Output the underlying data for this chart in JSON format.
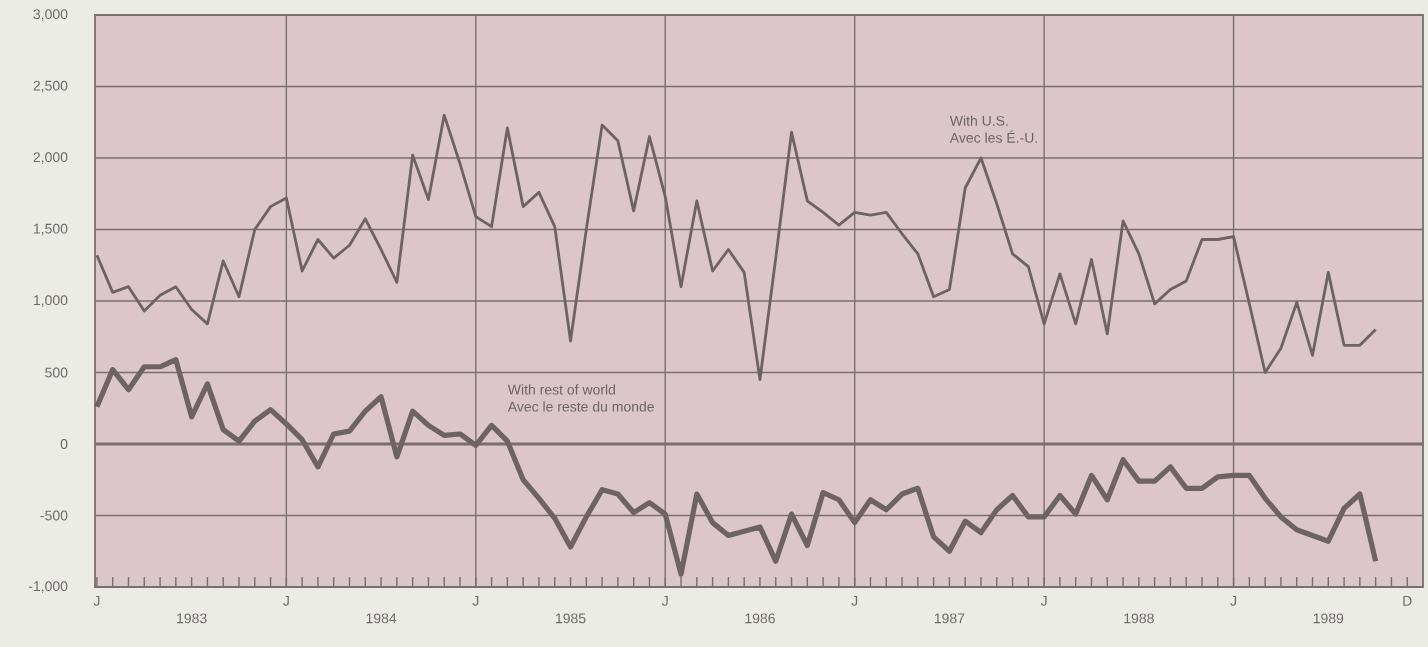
{
  "chart_data": {
    "type": "line",
    "categories": [
      "J",
      null,
      null,
      null,
      null,
      null,
      null,
      null,
      null,
      null,
      null,
      null,
      "J",
      null,
      null,
      null,
      null,
      null,
      null,
      null,
      null,
      null,
      null,
      null,
      "J",
      null,
      null,
      null,
      null,
      null,
      null,
      null,
      null,
      null,
      null,
      null,
      "J",
      null,
      null,
      null,
      null,
      null,
      null,
      null,
      null,
      null,
      null,
      null,
      "J",
      null,
      null,
      null,
      null,
      null,
      null,
      null,
      null,
      null,
      null,
      null,
      "J",
      null,
      null,
      null,
      null,
      null,
      null,
      null,
      null,
      null,
      null,
      null,
      "J",
      null,
      null,
      null,
      null,
      null,
      null,
      null,
      null,
      null,
      null,
      "D"
    ],
    "series": [
      {
        "name": "With U.S.",
        "color": "#6e6363",
        "values": [
          1320,
          1060,
          1100,
          930,
          1040,
          1100,
          940,
          840,
          1280,
          1030,
          1500,
          1660,
          1720,
          1210,
          1430,
          1300,
          1390,
          1575,
          1360,
          1130,
          2020,
          1710,
          2300,
          1960,
          1590,
          1520,
          2210,
          1660,
          1760,
          1520,
          720,
          1500,
          2230,
          2120,
          1630,
          2150,
          1730,
          1100,
          1700,
          1210,
          1360,
          1200,
          450,
          1300,
          2180,
          1700,
          1620,
          1530,
          1620,
          1600,
          1620,
          1470,
          1330,
          1030,
          1080,
          1790,
          2000,
          1680,
          1330,
          1240,
          840,
          1190,
          840,
          1290,
          770,
          1560,
          1330,
          980,
          1080,
          1140,
          1430,
          1430,
          1450,
          980,
          500,
          670,
          990,
          620,
          1200,
          690,
          690,
          800,
          null,
          null
        ]
      },
      {
        "name": "With rest of world",
        "color": "#6e6363",
        "values": [
          260,
          520,
          380,
          540,
          540,
          590,
          190,
          420,
          100,
          20,
          160,
          240,
          140,
          30,
          -160,
          70,
          90,
          230,
          330,
          -90,
          230,
          130,
          60,
          70,
          -10,
          130,
          20,
          -250,
          -380,
          -520,
          -720,
          -510,
          -320,
          -350,
          -480,
          -410,
          -490,
          -910,
          -350,
          -550,
          -640,
          -610,
          -580,
          -820,
          -490,
          -710,
          -340,
          -390,
          -550,
          -390,
          -460,
          -350,
          -310,
          -650,
          -750,
          -540,
          -620,
          -460,
          -360,
          -510,
          -510,
          -360,
          -490,
          -220,
          -390,
          -110,
          -260,
          -260,
          -160,
          -310,
          -310,
          -230,
          -220,
          -220,
          -380,
          -510,
          -600,
          -640,
          -680,
          -450,
          -350,
          -820,
          null,
          null
        ]
      }
    ],
    "annotations": [
      "Avec les É.-U.",
      "Avec le reste du monde",
      "1983",
      "1984",
      "1985",
      "1986",
      "1987",
      "1988",
      "1989"
    ],
    "ylim": [
      -1000,
      3000
    ],
    "yticks": [
      {
        "value": -1000,
        "label": "-1,000"
      },
      -500,
      0,
      500,
      {
        "value": 1000,
        "label": "1,000"
      },
      {
        "value": 1500,
        "label": "1,500"
      },
      {
        "value": 2000,
        "label": "2,000"
      },
      {
        "value": 2500,
        "label": "2,500"
      },
      {
        "value": 3000,
        "label": "3,000"
      }
    ],
    "grid": true,
    "ref_lines": [
      {
        "axis": "y",
        "value": 0
      }
    ],
    "marker": "none",
    "line_style": "solid"
  }
}
